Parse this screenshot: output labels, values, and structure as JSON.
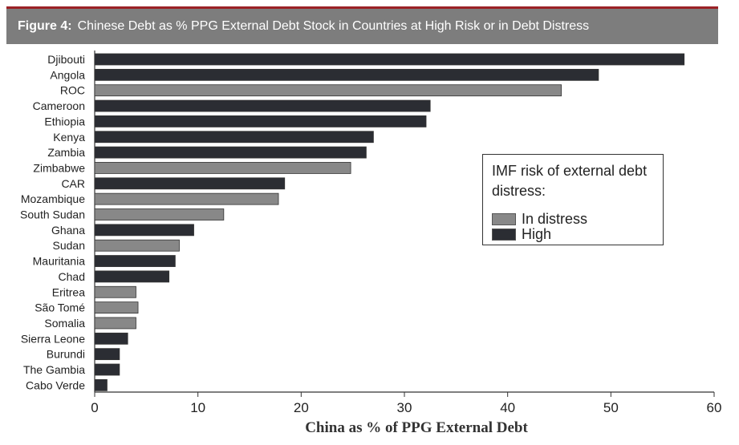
{
  "header": {
    "figure_label": "Figure 4:",
    "title": "Chinese Debt as % PPG External Debt Stock in Countries at High Risk or in Debt Distress"
  },
  "colors": {
    "in_distress": "#888888",
    "high": "#2b2d33",
    "header_bg": "#7d7d7d",
    "accent_line": "#9b2226"
  },
  "legend": {
    "title": "IMF risk of external debt distress:",
    "items": [
      {
        "label": "In distress",
        "key": "in_distress"
      },
      {
        "label": "High",
        "key": "high"
      }
    ]
  },
  "chart_data": {
    "type": "bar",
    "orientation": "horizontal",
    "xlabel": "China as % of PPG External Debt",
    "xlim": [
      0,
      60
    ],
    "xticks": [
      0,
      10,
      20,
      30,
      40,
      50,
      60
    ],
    "grid": false,
    "legend_position": "right",
    "categories": [
      "Djibouti",
      "Angola",
      "ROC",
      "Cameroon",
      "Ethiopia",
      "Kenya",
      "Zambia",
      "Zimbabwe",
      "CAR",
      "Mozambique",
      "South Sudan",
      "Ghana",
      "Sudan",
      "Mauritania",
      "Chad",
      "Eritrea",
      "São Tomé",
      "Somalia",
      "Sierra Leone",
      "Burundi",
      "The Gambia",
      "Cabo Verde"
    ],
    "values": [
      57.1,
      48.8,
      45.2,
      32.5,
      32.1,
      27.0,
      26.3,
      24.8,
      18.4,
      17.8,
      12.5,
      9.6,
      8.2,
      7.8,
      7.2,
      4.0,
      4.2,
      4.0,
      3.2,
      2.4,
      2.4,
      1.2
    ],
    "risk": [
      "high",
      "high",
      "in_distress",
      "high",
      "high",
      "high",
      "high",
      "in_distress",
      "high",
      "in_distress",
      "in_distress",
      "high",
      "in_distress",
      "high",
      "high",
      "in_distress",
      "in_distress",
      "in_distress",
      "high",
      "high",
      "high",
      "high"
    ]
  }
}
